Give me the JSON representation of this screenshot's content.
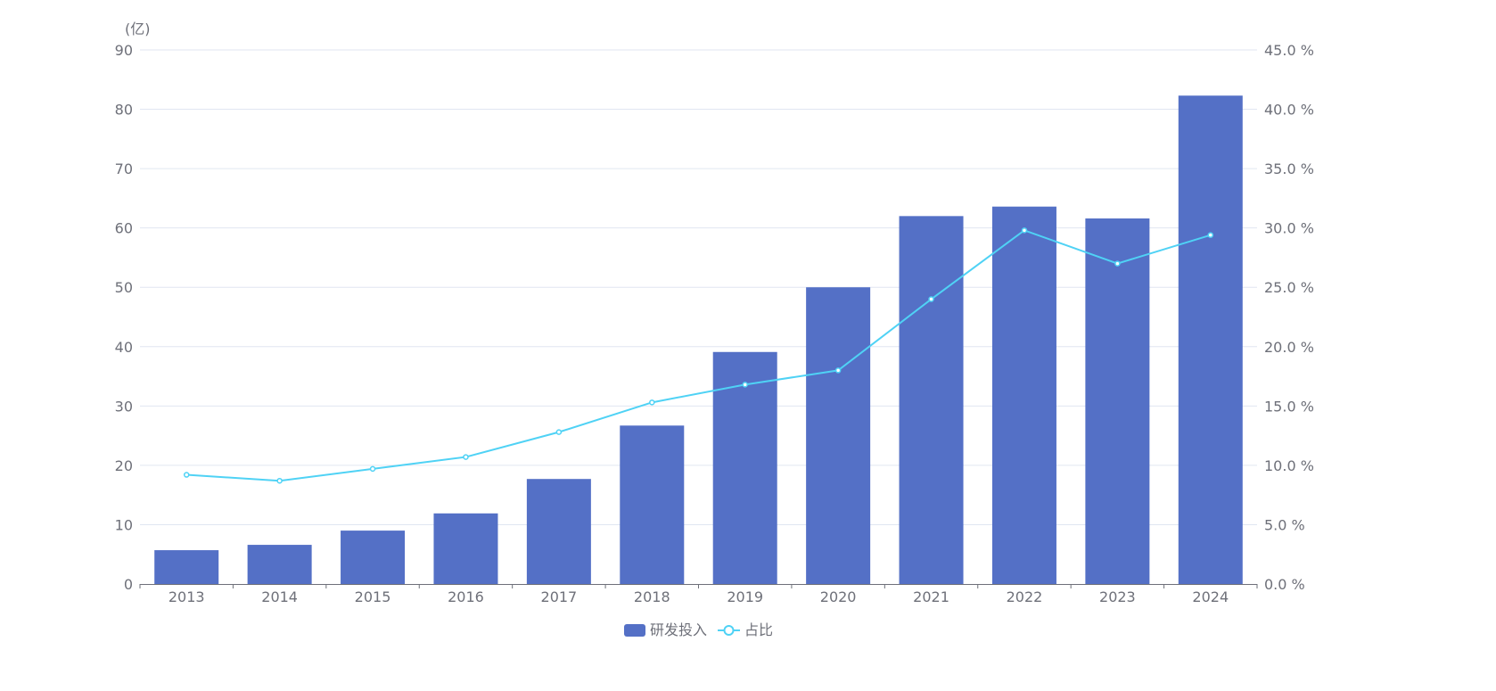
{
  "chart_data": {
    "type": "bar",
    "categories": [
      "2013",
      "2014",
      "2015",
      "2016",
      "2017",
      "2018",
      "2019",
      "2020",
      "2021",
      "2022",
      "2023",
      "2024"
    ],
    "series": [
      {
        "name": "研发投入",
        "type": "bar",
        "axis": "left",
        "color": "#5470c6",
        "values": [
          5.7,
          6.6,
          9.0,
          11.9,
          17.7,
          26.7,
          39.1,
          50.0,
          62.0,
          63.6,
          61.6,
          82.3
        ]
      },
      {
        "name": "占比",
        "type": "line",
        "axis": "right",
        "color": "#4fd2f5",
        "values": [
          9.2,
          8.7,
          9.7,
          10.7,
          12.8,
          15.3,
          16.8,
          18.0,
          24.0,
          29.8,
          27.0,
          29.4
        ]
      }
    ],
    "ylabel": "(亿)",
    "ylim": [
      0,
      90
    ],
    "yticks": [
      "0",
      "10",
      "20",
      "30",
      "40",
      "50",
      "60",
      "70",
      "80",
      "90"
    ],
    "y2lim": [
      0,
      45
    ],
    "y2ticks": [
      "0.0 %",
      "5.0 %",
      "10.0 %",
      "15.0 %",
      "20.0 %",
      "25.0 %",
      "30.0 %",
      "35.0 %",
      "40.0 %",
      "45.0 %"
    ],
    "grid": true,
    "legend_position": "bottom"
  }
}
